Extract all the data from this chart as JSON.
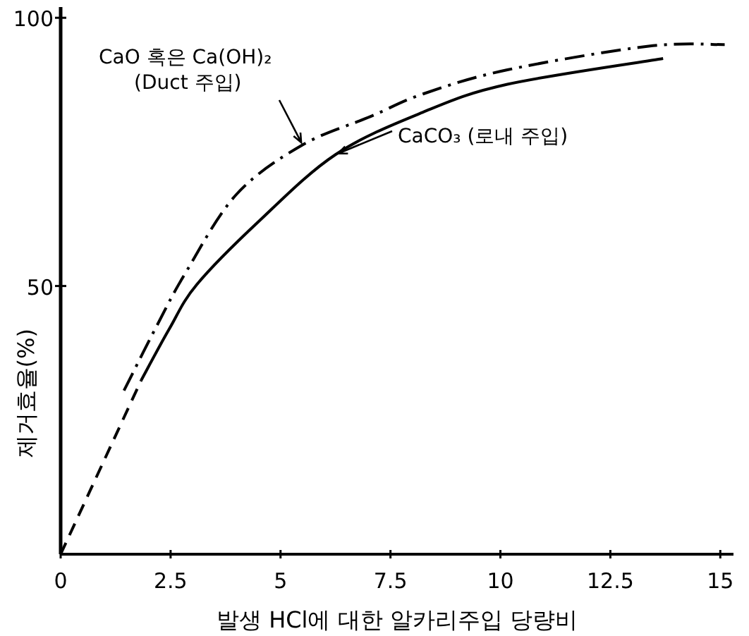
{
  "chart_data": {
    "type": "line",
    "xlabel": "발생 HCl에 대한 알카리주입 당량비",
    "ylabel": "제거효율(%)",
    "xlim": [
      0,
      15.3
    ],
    "ylim": [
      0,
      102
    ],
    "xticks": [
      0,
      2.5,
      5,
      7.5,
      10,
      12.5,
      15
    ],
    "yticks": [
      50,
      100
    ],
    "marker": "none",
    "series": [
      {
        "color": "#000000",
        "line_style": "dashdot",
        "x": [
          1.44,
          2.15,
          2.85,
          4.0,
          5.5,
          7.05,
          8.24,
          10.16,
          13.37,
          15.1
        ],
        "values": [
          30.5,
          42,
          52.6,
          67.1,
          76.3,
          81.6,
          85.8,
          90.3,
          94.7,
          95
        ]
      },
      {
        "color": "#000000",
        "line_style": "solid",
        "x": [
          1.83,
          2.47,
          3.1,
          4.5,
          6.25,
          8.24,
          10.16,
          13.7
        ],
        "values": [
          32.4,
          42,
          50.3,
          62,
          74.5,
          82.4,
          87.6,
          92.4
        ]
      },
      {
        "color": "#000000",
        "line_style": "dashed",
        "x": [
          0,
          1.83
        ],
        "values": [
          0,
          32.4
        ]
      }
    ],
    "annotations": [
      {
        "text": "CaO 혹은 Ca(OH)₂\n(Duct 주입)",
        "x": 5.5,
        "y": 76.3
      },
      {
        "text": "CaCO₃ (로내 주입)",
        "x": 6.25,
        "y": 74.5
      }
    ]
  }
}
